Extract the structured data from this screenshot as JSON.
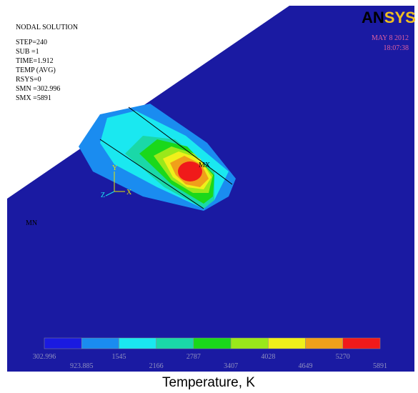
{
  "header": {
    "lines": [
      "NODAL SOLUTION",
      "STEP=240",
      "SUB =1",
      "TIME=1.912",
      "TEMP     (AVG)",
      "RSYS=0",
      "SMN =302.996",
      "SMX =5891"
    ],
    "logo_bold": "AN",
    "logo_light": "SYS",
    "date": "MAY  8 2012",
    "time": "18:07:38"
  },
  "markers": {
    "min": "MN",
    "max": "MX",
    "axis_x": "X",
    "axis_y": "Y",
    "axis_z": "Z"
  },
  "legend": {
    "colors": [
      "#1a1ae0",
      "#1a8cf0",
      "#1ae8f0",
      "#1ad8a8",
      "#1ad81a",
      "#9ae81a",
      "#f0f01a",
      "#f0a01a",
      "#f01a1a"
    ],
    "labels": [
      "302.996",
      "923.885",
      "1545",
      "2166",
      "2787",
      "3407",
      "4028",
      "4649",
      "5270",
      "5891"
    ]
  },
  "caption": "Temperature, K"
}
